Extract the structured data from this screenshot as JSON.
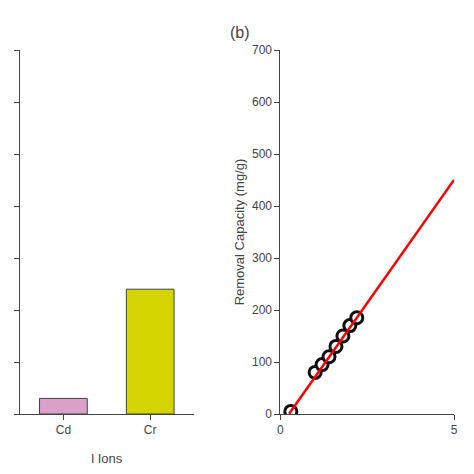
{
  "chart_data": [
    {
      "type": "bar",
      "xlabel": "l Ions",
      "categories": [
        "Cd",
        "Cr"
      ],
      "values": [
        30,
        240
      ],
      "colors": [
        "#d9a0c8",
        "#d4d400"
      ],
      "ylim": [
        0,
        700
      ],
      "yticks": [
        0,
        100,
        200,
        300,
        400,
        500,
        600,
        700
      ],
      "tick_labels": "x",
      "grid": false
    },
    {
      "type": "scatter",
      "title": "(b)",
      "ylabel": "Removal Capacity (mg/g)",
      "series": [
        {
          "type": "scatter",
          "marker": "circle",
          "color": "#111111",
          "x": [
            0.3,
            1.0,
            1.2,
            1.4,
            1.6,
            1.8,
            2.0,
            2.2
          ],
          "values": [
            5,
            80,
            95,
            110,
            130,
            150,
            170,
            185
          ]
        },
        {
          "type": "line",
          "line_style": "solid",
          "color": "#ff0000",
          "x": [
            0.250836,
            5
          ],
          "values": [
            0.342369,
            450.263158
          ]
        }
      ],
      "xlim": [
        0,
        5
      ],
      "xticks": [
        0,
        5
      ],
      "ylim": [
        0,
        700
      ],
      "yticks": [
        0,
        100,
        200,
        300,
        400,
        500,
        600,
        700
      ],
      "grid": false
    }
  ]
}
